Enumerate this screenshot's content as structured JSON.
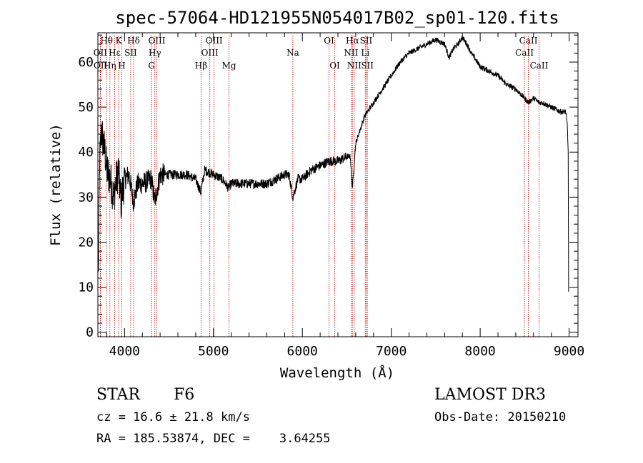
{
  "chart_data": {
    "type": "line",
    "title": "spec-57064-HD121955N054017B02_sp01-120.fits",
    "xlabel": "Wavelength (Å)",
    "ylabel": "Flux (relative)",
    "xlim": [
      3700,
      9100
    ],
    "ylim": [
      -1,
      66.5
    ],
    "x_ticks": [
      4000,
      5000,
      6000,
      7000,
      8000,
      9000
    ],
    "x_tick_labels": [
      "4000",
      "5000",
      "6000",
      "7000",
      "8000",
      "9000"
    ],
    "y_ticks": [
      0,
      10,
      20,
      30,
      40,
      50,
      60
    ],
    "y_tick_labels": [
      "0",
      "10",
      "20",
      "30",
      "40",
      "50",
      "60"
    ],
    "spectrum_anchor_points": [
      [
        3705,
        12
      ],
      [
        3720,
        38
      ],
      [
        3740,
        45
      ],
      [
        3760,
        42
      ],
      [
        3780,
        40
      ],
      [
        3800,
        36
      ],
      [
        3840,
        34
      ],
      [
        3880,
        30
      ],
      [
        3900,
        33
      ],
      [
        3930,
        36
      ],
      [
        3960,
        29
      ],
      [
        4000,
        34
      ],
      [
        4050,
        35
      ],
      [
        4100,
        29
      ],
      [
        4150,
        33
      ],
      [
        4200,
        33
      ],
      [
        4300,
        34
      ],
      [
        4340,
        29
      ],
      [
        4400,
        35
      ],
      [
        4500,
        35
      ],
      [
        4600,
        35
      ],
      [
        4700,
        35
      ],
      [
        4800,
        34
      ],
      [
        4860,
        31
      ],
      [
        4900,
        36
      ],
      [
        5000,
        35
      ],
      [
        5100,
        34
      ],
      [
        5170,
        32
      ],
      [
        5200,
        33
      ],
      [
        5300,
        33
      ],
      [
        5400,
        33
      ],
      [
        5500,
        33
      ],
      [
        5600,
        33
      ],
      [
        5700,
        34
      ],
      [
        5800,
        35
      ],
      [
        5850,
        35
      ],
      [
        5893,
        30
      ],
      [
        5950,
        34
      ],
      [
        6000,
        34
      ],
      [
        6100,
        36
      ],
      [
        6200,
        37
      ],
      [
        6300,
        38
      ],
      [
        6400,
        38
      ],
      [
        6500,
        39
      ],
      [
        6540,
        39
      ],
      [
        6563,
        32
      ],
      [
        6600,
        42
      ],
      [
        6650,
        45
      ],
      [
        6700,
        48
      ],
      [
        6800,
        51
      ],
      [
        6900,
        54
      ],
      [
        7000,
        57
      ],
      [
        7100,
        60
      ],
      [
        7200,
        62
      ],
      [
        7300,
        63
      ],
      [
        7400,
        64
      ],
      [
        7500,
        65
      ],
      [
        7600,
        64
      ],
      [
        7650,
        61
      ],
      [
        7700,
        63
      ],
      [
        7750,
        64
      ],
      [
        7800,
        65.5
      ],
      [
        7850,
        64
      ],
      [
        7900,
        62
      ],
      [
        8000,
        59
      ],
      [
        8100,
        58
      ],
      [
        8200,
        57
      ],
      [
        8300,
        55
      ],
      [
        8400,
        54
      ],
      [
        8498,
        52
      ],
      [
        8542,
        51
      ],
      [
        8600,
        52
      ],
      [
        8662,
        51
      ],
      [
        8700,
        51
      ],
      [
        8800,
        50
      ],
      [
        8900,
        49
      ],
      [
        8960,
        49
      ],
      [
        8980,
        46
      ],
      [
        8990,
        40
      ],
      [
        8995,
        9
      ]
    ],
    "line_annotations": [
      {
        "label": "Hθ",
        "wavelength": 3798,
        "row": 1
      },
      {
        "label": "OII",
        "wavelength": 3727,
        "row": 2
      },
      {
        "label": "OII",
        "wavelength": 3729,
        "row": 3
      },
      {
        "label": "Hη",
        "wavelength": 3835,
        "row": 3
      },
      {
        "label": "Hε",
        "wavelength": 3889,
        "row": 2
      },
      {
        "label": "K",
        "wavelength": 3934,
        "row": 1
      },
      {
        "label": "H",
        "wavelength": 3969,
        "row": 3
      },
      {
        "label": "SII",
        "wavelength": 4069,
        "row": 2
      },
      {
        "label": "Hδ",
        "wavelength": 4102,
        "row": 1
      },
      {
        "label": "OIII",
        "wavelength": 4363,
        "row": 1
      },
      {
        "label": "Hγ",
        "wavelength": 4341,
        "row": 2
      },
      {
        "label": "G",
        "wavelength": 4304,
        "row": 3
      },
      {
        "label": "Hβ",
        "wavelength": 4861,
        "row": 3
      },
      {
        "label": "OIII",
        "wavelength": 5007,
        "row": 1
      },
      {
        "label": "OIII",
        "wavelength": 4959,
        "row": 2
      },
      {
        "label": "Mg",
        "wavelength": 5175,
        "row": 3
      },
      {
        "label": "Na",
        "wavelength": 5893,
        "row": 2
      },
      {
        "label": "OI",
        "wavelength": 6300,
        "row": 1
      },
      {
        "label": "OI",
        "wavelength": 6364,
        "row": 3
      },
      {
        "label": "Hα",
        "wavelength": 6563,
        "row": 1
      },
      {
        "label": "NII",
        "wavelength": 6548,
        "row": 2
      },
      {
        "label": "NII",
        "wavelength": 6584,
        "row": 3
      },
      {
        "label": "SII",
        "wavelength": 6717,
        "row": 1
      },
      {
        "label": "Li",
        "wavelength": 6708,
        "row": 2
      },
      {
        "label": "SII",
        "wavelength": 6731,
        "row": 3
      },
      {
        "label": "CaII",
        "wavelength": 8542,
        "row": 1
      },
      {
        "label": "CaII",
        "wavelength": 8498,
        "row": 2
      },
      {
        "label": "CaII",
        "wavelength": 8662,
        "row": 3
      }
    ]
  },
  "info": {
    "class": "STAR",
    "subclass": "F6",
    "survey": "LAMOST DR3",
    "redshift": "cz = 16.6 ± 21.8 km/s",
    "obs_date": "Obs-Date: 20150210",
    "coords": "RA = 185.53874, DEC =    3.64255"
  },
  "colors": {
    "spectrum": "#000000",
    "marker_lines": "#cc0000",
    "axes": "#000000"
  }
}
